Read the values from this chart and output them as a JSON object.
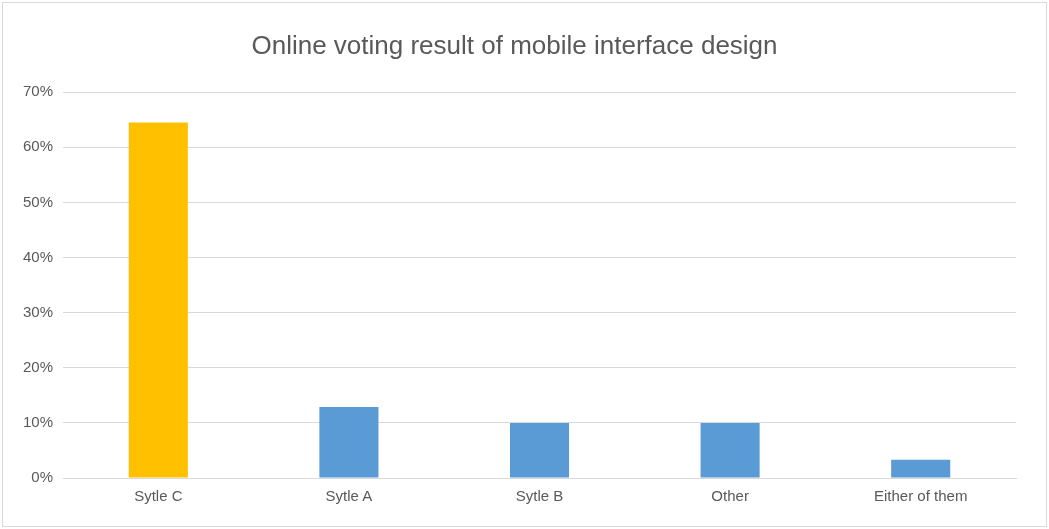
{
  "chart_data": {
    "type": "bar",
    "title": "Online voting result of mobile interface design",
    "categories": [
      "Sytle C",
      "Sytle A",
      "Sytle B",
      "Other",
      "Either of them"
    ],
    "values": [
      64.5,
      12.9,
      10,
      10,
      3.3
    ],
    "colors": [
      "#ffc000",
      "#5b9bd5",
      "#5b9bd5",
      "#5b9bd5",
      "#5b9bd5"
    ],
    "ylim": [
      0,
      70
    ],
    "yticks": [
      {
        "value": 0,
        "label": "0%"
      },
      {
        "value": 10,
        "label": "10%"
      },
      {
        "value": 20,
        "label": "20%"
      },
      {
        "value": 30,
        "label": "30%"
      },
      {
        "value": 40,
        "label": "40%"
      },
      {
        "value": 50,
        "label": "50%"
      },
      {
        "value": 60,
        "label": "60%"
      },
      {
        "value": 70,
        "label": "70%"
      }
    ],
    "grid": "y"
  }
}
